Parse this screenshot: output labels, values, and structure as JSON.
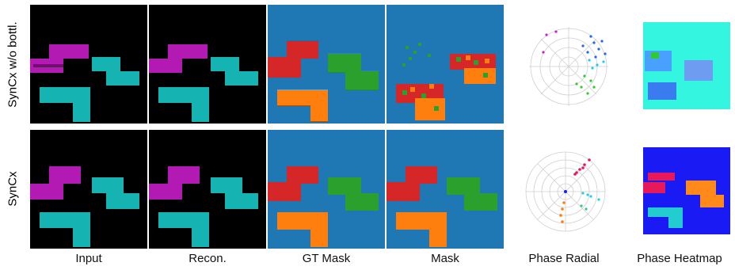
{
  "row_labels": [
    "SynCx w/o bottl.",
    "SynCx"
  ],
  "column_labels": [
    "Input",
    "Recon.",
    "GT Mask",
    "Mask",
    "Phase Radial",
    "Phase Heatmap"
  ],
  "colors": {
    "input_background": "#000000",
    "magenta_object": "#b319b3",
    "cyan_object": "#16b3b3",
    "mask_background": "#1f77b4",
    "mask_red": "#d62728",
    "mask_green": "#2ca02c",
    "mask_orange": "#ff7f0e",
    "heatmap_bg_top": "#33f5e0",
    "heatmap_bg_bottom": "#1a1af5"
  }
}
